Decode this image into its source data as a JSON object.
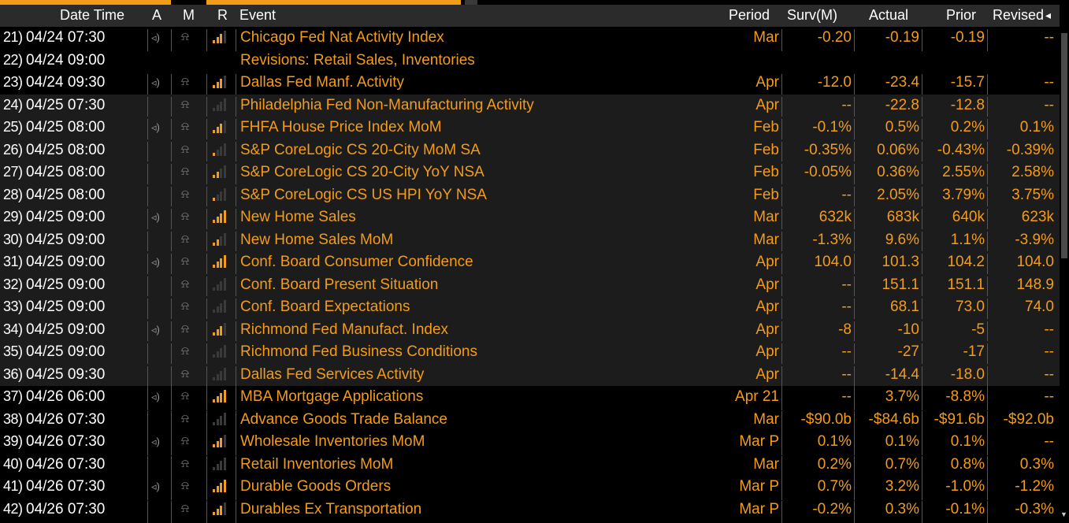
{
  "columns": {
    "date_time": "Date Time",
    "a": "A",
    "m": "M",
    "r": "R",
    "event": "Event",
    "period": "Period",
    "surv": "Surv(M)",
    "actual": "Actual",
    "prior": "Prior",
    "revised": "Revised",
    "sort_indicator": "◂"
  },
  "rows": [
    {
      "n": "21)",
      "dt": "04/24 07:30",
      "alert": true,
      "rel": 3,
      "event": "Chicago Fed Nat Activity Index",
      "period": "Mar",
      "surv": "-0.20",
      "actual": "-0.19",
      "prior": "-0.19",
      "revised": "--",
      "bg": "dark"
    },
    {
      "n": "22)",
      "dt": "04/24 09:00",
      "alert": false,
      "bell": false,
      "rel": 0,
      "event": "Revisions: Retail Sales, Inventories",
      "period": "",
      "surv": "",
      "actual": "",
      "prior": "",
      "revised": "",
      "bg": "dark"
    },
    {
      "n": "23)",
      "dt": "04/24 09:30",
      "alert": true,
      "rel": 3,
      "event": "Dallas Fed Manf. Activity",
      "period": "Apr",
      "surv": "-12.0",
      "actual": "-23.4",
      "prior": "-15.7",
      "revised": "--",
      "bg": "dark"
    },
    {
      "n": "24)",
      "dt": "04/25 07:30",
      "alert": false,
      "rel": 0,
      "event": "Philadelphia Fed Non-Manufacturing Activity",
      "period": "Apr",
      "surv": "--",
      "actual": "-22.8",
      "prior": "-12.8",
      "revised": "--",
      "bg": "gray"
    },
    {
      "n": "25)",
      "dt": "04/25 08:00",
      "alert": true,
      "rel": 3,
      "event": "FHFA House Price Index MoM",
      "period": "Feb",
      "surv": "-0.1%",
      "actual": "0.5%",
      "prior": "0.2%",
      "revised": "0.1%",
      "bg": "gray"
    },
    {
      "n": "26)",
      "dt": "04/25 08:00",
      "alert": false,
      "rel": 1,
      "event": "S&P CoreLogic CS 20-City MoM SA",
      "period": "Feb",
      "surv": "-0.35%",
      "actual": "0.06%",
      "prior": "-0.43%",
      "revised": "-0.39%",
      "bg": "gray"
    },
    {
      "n": "27)",
      "dt": "04/25 08:00",
      "alert": false,
      "rel": 2,
      "event": "S&P CoreLogic CS 20-City YoY NSA",
      "period": "Feb",
      "surv": "-0.05%",
      "actual": "0.36%",
      "prior": "2.55%",
      "revised": "2.58%",
      "bg": "gray"
    },
    {
      "n": "28)",
      "dt": "04/25 08:00",
      "alert": false,
      "rel": 1,
      "event": "S&P CoreLogic CS US HPI YoY NSA",
      "period": "Feb",
      "surv": "--",
      "actual": "2.05%",
      "prior": "3.79%",
      "revised": "3.75%",
      "bg": "gray"
    },
    {
      "n": "29)",
      "dt": "04/25 09:00",
      "alert": true,
      "rel": 4,
      "event": "New Home Sales",
      "period": "Mar",
      "surv": "632k",
      "actual": "683k",
      "prior": "640k",
      "revised": "623k",
      "bg": "gray"
    },
    {
      "n": "30)",
      "dt": "04/25 09:00",
      "alert": false,
      "rel": 2,
      "event": "New Home Sales MoM",
      "period": "Mar",
      "surv": "-1.3%",
      "actual": "9.6%",
      "prior": "1.1%",
      "revised": "-3.9%",
      "bg": "gray"
    },
    {
      "n": "31)",
      "dt": "04/25 09:00",
      "alert": true,
      "rel": 4,
      "event": "Conf. Board Consumer Confidence",
      "period": "Apr",
      "surv": "104.0",
      "actual": "101.3",
      "prior": "104.2",
      "revised": "104.0",
      "bg": "gray"
    },
    {
      "n": "32)",
      "dt": "04/25 09:00",
      "alert": false,
      "rel": 0,
      "event": "Conf. Board Present Situation",
      "period": "Apr",
      "surv": "--",
      "actual": "151.1",
      "prior": "151.1",
      "revised": "148.9",
      "bg": "gray"
    },
    {
      "n": "33)",
      "dt": "04/25 09:00",
      "alert": false,
      "rel": 0,
      "event": "Conf. Board Expectations",
      "period": "Apr",
      "surv": "--",
      "actual": "68.1",
      "prior": "73.0",
      "revised": "74.0",
      "bg": "gray"
    },
    {
      "n": "34)",
      "dt": "04/25 09:00",
      "alert": true,
      "rel": 3,
      "event": "Richmond Fed Manufact. Index",
      "period": "Apr",
      "surv": "-8",
      "actual": "-10",
      "prior": "-5",
      "revised": "--",
      "bg": "gray"
    },
    {
      "n": "35)",
      "dt": "04/25 09:00",
      "alert": false,
      "rel": 0,
      "event": "Richmond Fed Business Conditions",
      "period": "Apr",
      "surv": "--",
      "actual": "-27",
      "prior": "-17",
      "revised": "--",
      "bg": "gray"
    },
    {
      "n": "36)",
      "dt": "04/25 09:30",
      "alert": false,
      "rel": 0,
      "event": "Dallas Fed Services Activity",
      "period": "Apr",
      "surv": "--",
      "actual": "-14.4",
      "prior": "-18.0",
      "revised": "--",
      "bg": "gray"
    },
    {
      "n": "37)",
      "dt": "04/26 06:00",
      "alert": true,
      "rel": 4,
      "event": "MBA Mortgage Applications",
      "period": "Apr 21",
      "surv": "--",
      "actual": "3.7%",
      "prior": "-8.8%",
      "revised": "--",
      "bg": "dark"
    },
    {
      "n": "38)",
      "dt": "04/26 07:30",
      "alert": false,
      "rel": 0,
      "event": "Advance Goods Trade Balance",
      "period": "Mar",
      "surv": "-$90.0b",
      "actual": "-$84.6b",
      "prior": "-$91.6b",
      "revised": "-$92.0b",
      "bg": "dark"
    },
    {
      "n": "39)",
      "dt": "04/26 07:30",
      "alert": true,
      "rel": 3,
      "event": "Wholesale Inventories MoM",
      "period": "Mar P",
      "surv": "0.1%",
      "actual": "0.1%",
      "prior": "0.1%",
      "revised": "--",
      "bg": "dark"
    },
    {
      "n": "40)",
      "dt": "04/26 07:30",
      "alert": false,
      "rel": 0,
      "event": "Retail Inventories MoM",
      "period": "Mar",
      "surv": "0.2%",
      "actual": "0.7%",
      "prior": "0.8%",
      "revised": "0.3%",
      "bg": "dark"
    },
    {
      "n": "41)",
      "dt": "04/26 07:30",
      "alert": true,
      "rel": 4,
      "event": "Durable Goods Orders",
      "period": "Mar P",
      "surv": "0.7%",
      "actual": "3.2%",
      "prior": "-1.0%",
      "revised": "-1.2%",
      "bg": "dark"
    },
    {
      "n": "42)",
      "dt": "04/26 07:30",
      "alert": false,
      "rel": 3,
      "event": "Durables Ex Transportation",
      "period": "Mar P",
      "surv": "-0.2%",
      "actual": "0.3%",
      "prior": "-0.1%",
      "revised": "-0.3%",
      "bg": "dark"
    }
  ],
  "icons": {
    "alert": "speaker-icon",
    "bell": "bell-icon",
    "relevance": "relevance-bars-icon",
    "scroll_down": "scroll-down-arrow-icon"
  },
  "colors": {
    "accent": "#f39c1a",
    "background": "#000000",
    "header_bg": "#2b2b2b",
    "row_highlight": "#1c1c1c",
    "text": "#ffffff"
  }
}
